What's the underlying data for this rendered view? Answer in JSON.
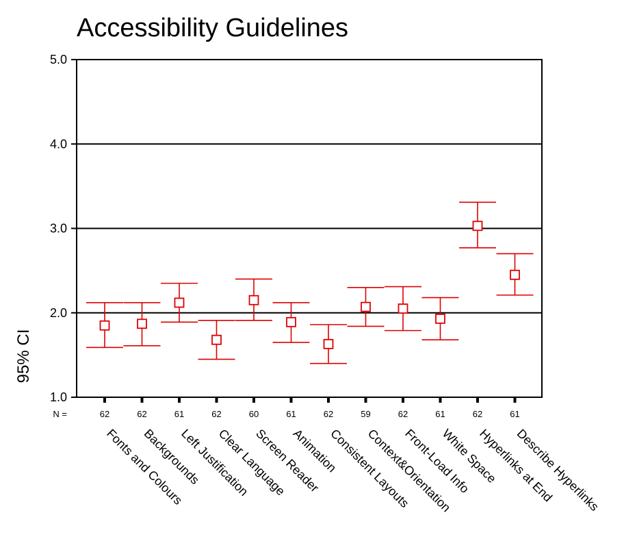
{
  "chart_data": {
    "type": "errorbar",
    "title": "Accessibility Guidelines",
    "ylabel": "95% CI",
    "ylim": [
      1.0,
      5.0
    ],
    "yticks": [
      "1.0",
      "2.0",
      "3.0",
      "4.0",
      "5.0"
    ],
    "n_prefix": "N =",
    "grid": "horizontal",
    "series_color": "#dd0000",
    "categories": [
      "Fonts and Colours",
      "Backgrounds",
      "Left Justification",
      "Clear Language",
      "Screen Reader",
      "Animation",
      "Consistent Layouts",
      "Context&Orientation",
      "Front-Load Info",
      "White Space",
      "Hyperlinks at End",
      "Describe Hyperlinks"
    ],
    "n": [
      "62",
      "62",
      "61",
      "62",
      "60",
      "61",
      "62",
      "59",
      "62",
      "61",
      "62",
      "61"
    ],
    "mean": [
      1.85,
      1.87,
      2.12,
      1.68,
      2.15,
      1.89,
      1.63,
      2.07,
      2.05,
      1.93,
      3.03,
      2.45
    ],
    "lower": [
      1.59,
      1.61,
      1.89,
      1.45,
      1.91,
      1.65,
      1.4,
      1.84,
      1.79,
      1.68,
      2.77,
      2.21
    ],
    "upper": [
      2.12,
      2.12,
      2.35,
      1.91,
      2.4,
      2.12,
      1.86,
      2.3,
      2.31,
      2.18,
      3.31,
      2.7
    ]
  }
}
